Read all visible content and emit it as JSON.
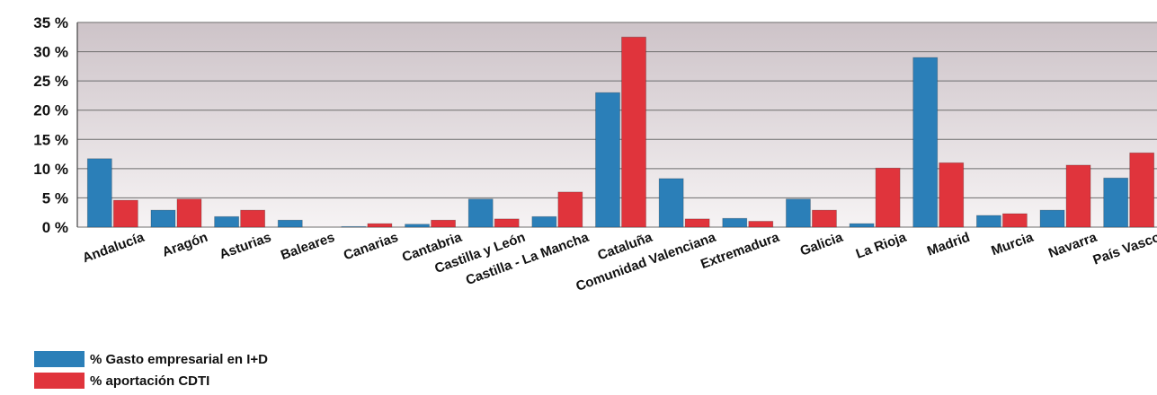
{
  "chart_data": {
    "type": "bar",
    "title": "",
    "xlabel": "",
    "ylabel": "",
    "ylim": [
      0,
      35
    ],
    "yticks": [
      0,
      5,
      10,
      15,
      20,
      25,
      30,
      35
    ],
    "ytick_labels": [
      "0 %",
      "5 %",
      "10 %",
      "15 %",
      "20 %",
      "25 %",
      "30 %",
      "35 %"
    ],
    "grid": true,
    "legend_position": "bottom-left",
    "categories": [
      "Andalucía",
      "Aragón",
      "Asturias",
      "Baleares",
      "Canarias",
      "Cantabria",
      "Castilla y León",
      "Castilla - La Mancha",
      "Cataluña",
      "Comunidad Valenciana",
      "Extremadura",
      "Galicia",
      "La Rioja",
      "Madrid",
      "Murcia",
      "Navarra",
      "País Vasco"
    ],
    "series": [
      {
        "name": "% Gasto empresarial en I+D",
        "color": "#2b7fb8",
        "values": [
          11.7,
          2.9,
          1.8,
          1.2,
          0.1,
          0.5,
          4.8,
          1.8,
          23.0,
          8.3,
          1.5,
          4.8,
          0.6,
          29.0,
          2.0,
          2.9,
          8.4
        ]
      },
      {
        "name": "% aportación CDTI",
        "color": "#e0343c",
        "values": [
          4.6,
          4.8,
          2.9,
          0.0,
          0.6,
          1.2,
          1.4,
          6.0,
          32.5,
          1.4,
          1.0,
          2.9,
          10.1,
          11.0,
          2.3,
          10.6,
          12.7
        ]
      }
    ]
  }
}
